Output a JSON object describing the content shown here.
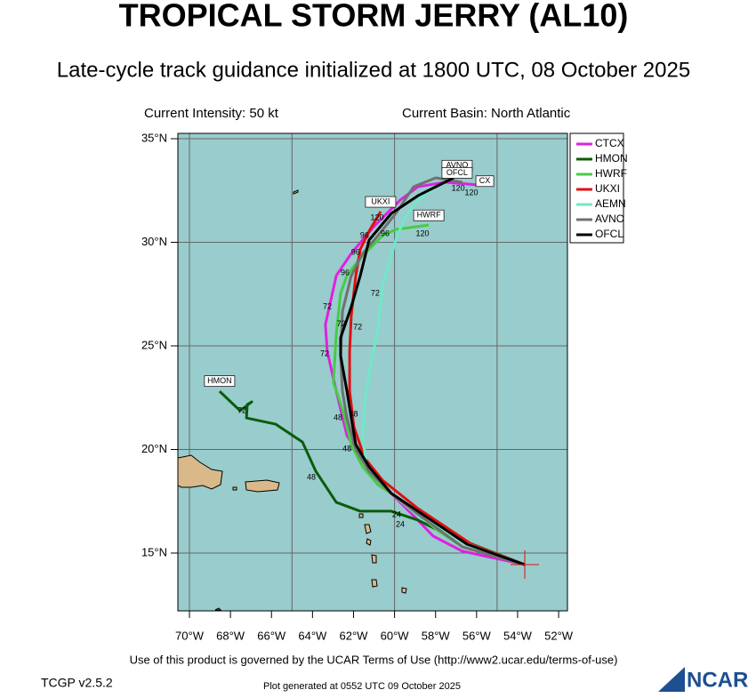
{
  "header": {
    "title": "TROPICAL STORM JERRY (AL10)",
    "subtitle": "Late-cycle track guidance initialized at 1800 UTC, 08 October 2025",
    "intensity": "Current Intensity: 50 kt",
    "basin": "Current Basin: North Atlantic"
  },
  "map": {
    "lon_ticks": [
      {
        "value": -70,
        "label": "70°W"
      },
      {
        "value": -68,
        "label": "68°W"
      },
      {
        "value": -66,
        "label": "66°W"
      },
      {
        "value": -64,
        "label": "64°W"
      },
      {
        "value": -62,
        "label": "62°W"
      },
      {
        "value": -60,
        "label": "60°W"
      },
      {
        "value": -58,
        "label": "58°W"
      },
      {
        "value": -56,
        "label": "56°W"
      },
      {
        "value": -54,
        "label": "54°W"
      },
      {
        "value": -52,
        "label": "52°W"
      }
    ],
    "lat_ticks": [
      {
        "value": 15,
        "label": "15°N"
      },
      {
        "value": 20,
        "label": "20°N"
      },
      {
        "value": 25,
        "label": "25°N"
      },
      {
        "value": 30,
        "label": "30°N"
      },
      {
        "value": 35,
        "label": "35°N"
      }
    ],
    "grid_lons": [
      -70,
      -65,
      -60,
      -55
    ],
    "grid_lats": [
      15,
      20,
      25,
      30,
      35
    ],
    "tracks": [
      {
        "name": "CTCX",
        "color": "#e020e0",
        "lons": [
          -53.65,
          -56.69,
          -58.12,
          -59.07,
          -60.16,
          -61.46,
          -62.32,
          -62.84,
          -63.28,
          -63.37,
          -62.84,
          -62.11,
          -61.02,
          -59.72,
          -58.86,
          -57.55,
          -55.91
        ],
        "lats": [
          14.44,
          15.09,
          15.82,
          16.8,
          17.88,
          19.38,
          20.67,
          22.81,
          24.74,
          26.03,
          28.39,
          29.46,
          30.75,
          32.04,
          32.68,
          32.9,
          32.77
        ]
      },
      {
        "name": "HMON",
        "color": "#0a5c0a",
        "lons": [
          -53.65,
          -57.55,
          -58.86,
          -60.16,
          -61.67,
          -62.84,
          -63.84,
          -64.49,
          -65.79,
          -67.22,
          -67.18,
          -66.96,
          -67.53,
          -68.53
        ],
        "lats": [
          14.44,
          15.94,
          16.59,
          17.02,
          17.02,
          17.45,
          18.95,
          20.36,
          21.22,
          21.52,
          22.17,
          22.3,
          21.87,
          22.81
        ]
      },
      {
        "name": "HWRF",
        "color": "#44cc44",
        "lons": [
          -53.65,
          -56.69,
          -57.99,
          -59.51,
          -60.81,
          -61.55,
          -62.11,
          -62.54,
          -62.98,
          -62.84,
          -62.63,
          -62.32,
          -61.67,
          -60.59,
          -59.94,
          -58.33
        ],
        "lats": [
          14.44,
          15.3,
          16.16,
          17.45,
          18.3,
          19.16,
          20.24,
          21.95,
          23.24,
          25.6,
          27.53,
          28.39,
          29.24,
          30.32,
          30.62,
          30.83
        ]
      },
      {
        "name": "UKXI",
        "color": "#e01010",
        "lons": [
          -53.65,
          -56.25,
          -58.86,
          -60.59,
          -61.46,
          -61.98,
          -62.19,
          -62.19,
          -62.11,
          -61.89,
          -61.67,
          -61.24,
          -60.68
        ],
        "lats": [
          14.44,
          15.43,
          17.15,
          18.52,
          19.59,
          21.09,
          22.81,
          24.74,
          26.46,
          28.39,
          29.67,
          30.54,
          31.48
        ]
      },
      {
        "name": "AEMN",
        "color": "#70e8c8",
        "lons": [
          -53.65,
          -56.69,
          -58.86,
          -60.16,
          -61.37,
          -61.55,
          -61.46,
          -61.24,
          -60.81,
          -60.59,
          -60.24,
          -59.94,
          -59.51,
          -58.86,
          -57.99
        ],
        "lats": [
          14.44,
          15.52,
          16.8,
          17.88,
          19.16,
          20.67,
          22.17,
          23.67,
          25.82,
          27.96,
          29.03,
          30.11,
          31.18,
          32.04,
          32.68
        ]
      },
      {
        "name": "AVNO",
        "color": "#707070",
        "lons": [
          -53.65,
          -56.69,
          -58.86,
          -60.16,
          -61.24,
          -61.89,
          -62.32,
          -62.54,
          -62.63,
          -62.54,
          -62.11,
          -61.55,
          -60.81,
          -59.94,
          -59.07,
          -57.99,
          -56.69
        ],
        "lats": [
          14.44,
          15.3,
          16.88,
          17.88,
          18.95,
          20.02,
          21.52,
          22.81,
          24.53,
          26.67,
          28.39,
          29.46,
          30.32,
          31.39,
          32.68,
          33.11,
          32.9
        ]
      },
      {
        "name": "OFCL",
        "color": "#000000",
        "lons": [
          -53.65,
          -56.47,
          -58.86,
          -60.16,
          -61.24,
          -61.89,
          -62.11,
          -62.32,
          -62.63,
          -62.63,
          -62.11,
          -61.67,
          -61.24,
          -60.16,
          -58.86,
          -57.12
        ],
        "lats": [
          14.44,
          15.43,
          17.02,
          17.88,
          19.16,
          20.24,
          21.52,
          22.81,
          24.53,
          25.39,
          26.89,
          28.39,
          30.11,
          31.39,
          32.25,
          33.11
        ]
      }
    ],
    "hour_labels": [
      {
        "text": "24",
        "lon": -59.72,
        "lat": 16.37
      },
      {
        "text": "24",
        "lon": -59.9,
        "lat": 16.85
      },
      {
        "text": "48",
        "lon": -62.76,
        "lat": 21.52
      },
      {
        "text": "48",
        "lon": -62.32,
        "lat": 20.02
      },
      {
        "text": "48",
        "lon": -64.06,
        "lat": 18.65
      },
      {
        "text": "48",
        "lon": -62.0,
        "lat": 21.7
      },
      {
        "text": "72",
        "lon": -63.28,
        "lat": 26.89
      },
      {
        "text": "72",
        "lon": -63.41,
        "lat": 24.61
      },
      {
        "text": "72",
        "lon": -62.6,
        "lat": 26.05
      },
      {
        "text": "72",
        "lon": -61.8,
        "lat": 25.9
      },
      {
        "text": "72",
        "lon": -60.94,
        "lat": 27.53
      },
      {
        "text": "72",
        "lon": -67.44,
        "lat": 21.87
      },
      {
        "text": "96",
        "lon": -62.41,
        "lat": 28.52
      },
      {
        "text": "96",
        "lon": -61.9,
        "lat": 29.5
      },
      {
        "text": "96",
        "lon": -61.46,
        "lat": 30.32
      },
      {
        "text": "96",
        "lon": -60.46,
        "lat": 30.41
      },
      {
        "text": "120",
        "lon": -60.85,
        "lat": 31.18
      },
      {
        "text": "120",
        "lon": -58.64,
        "lat": 30.41
      },
      {
        "text": "120",
        "lon": -56.25,
        "lat": 32.38
      },
      {
        "text": "120",
        "lon": -56.9,
        "lat": 32.6
      }
    ],
    "tags": [
      {
        "text": "HMON",
        "lon": -68.53,
        "lat": 23.3
      },
      {
        "text": "UKXI",
        "lon": -60.68,
        "lat": 31.95
      },
      {
        "text": "HWRF",
        "lon": -58.33,
        "lat": 31.3
      },
      {
        "text": "AVNO",
        "lon": -56.95,
        "lat": 33.7
      },
      {
        "text": "OFCL",
        "lon": -56.95,
        "lat": 33.35
      },
      {
        "text": "CX",
        "lon": -55.6,
        "lat": 32.95
      }
    ]
  },
  "footer": {
    "terms": "Use of this product is governed by the UCAR Terms of Use (http://www2.ucar.edu/terms-of-use)",
    "version": "TCGP v2.5.2",
    "generated": "Plot generated at 0552 UTC   09 October 2025",
    "logo": "NCAR"
  }
}
